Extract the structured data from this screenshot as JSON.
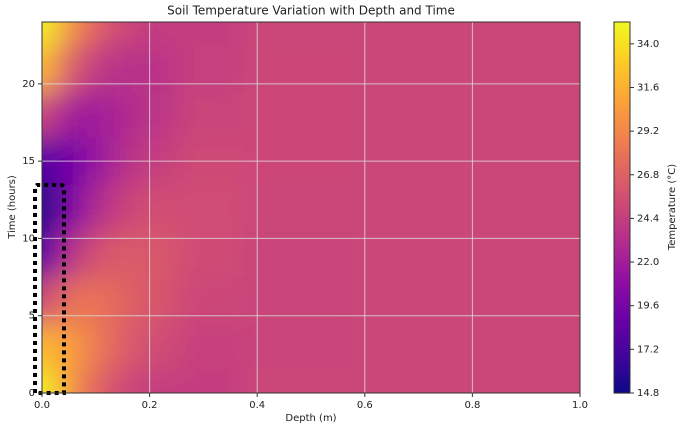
{
  "chart_data": {
    "type": "contour",
    "title": "Soil Temperature Variation with Depth and Time",
    "x_label": "Depth (m)",
    "y_label": "Time (hours)",
    "colorbar_label": "Temperature (°C)",
    "x": [
      0,
      0.05,
      0.1,
      0.15,
      0.2,
      0.3,
      0.45,
      0.7,
      1.0
    ],
    "y": [
      0,
      3,
      6,
      9,
      12,
      15,
      18,
      21,
      24
    ],
    "values": [
      [
        34.9,
        30.2,
        26.9,
        25.1,
        24.3,
        24.4,
        24.9,
        24.9,
        24.9
      ],
      [
        32.0,
        30.7,
        28.5,
        26.6,
        25.4,
        24.6,
        24.8,
        24.9,
        24.9
      ],
      [
        24.9,
        27.8,
        28.0,
        27.1,
        26.1,
        25.0,
        24.8,
        24.9,
        24.9
      ],
      [
        17.8,
        23.2,
        25.7,
        26.4,
        26.2,
        25.3,
        24.8,
        24.9,
        24.9
      ],
      [
        14.9,
        19.6,
        22.9,
        24.7,
        25.5,
        25.4,
        24.9,
        24.9,
        24.9
      ],
      [
        17.8,
        19.1,
        21.3,
        23.2,
        24.4,
        25.2,
        25.0,
        24.9,
        24.9
      ],
      [
        24.9,
        22.0,
        21.8,
        22.7,
        23.7,
        24.8,
        25.0,
        24.9,
        24.9
      ],
      [
        32.0,
        26.6,
        24.1,
        23.4,
        23.6,
        24.5,
        25.0,
        24.9,
        24.9
      ],
      [
        34.9,
        30.2,
        26.9,
        25.1,
        24.3,
        24.4,
        24.9,
        24.9,
        24.9
      ]
    ],
    "xlim": [
      0,
      1.0
    ],
    "ylim": [
      0,
      24
    ],
    "clim": [
      14.8,
      35.2
    ],
    "xticks": [
      {
        "value": 0,
        "label": "0.0"
      },
      0.2,
      0.4,
      0.6,
      0.8,
      {
        "value": 1,
        "label": "1.0"
      }
    ],
    "yticks": [
      0,
      5,
      10,
      15,
      20
    ],
    "cticks": [
      14.8,
      17.2,
      19.6,
      {
        "value": 22,
        "label": "22.0"
      },
      24.4,
      26.8,
      29.2,
      31.6,
      {
        "value": 34,
        "label": "34.0"
      }
    ],
    "colormap": [
      "#0d0887",
      "#41049d",
      "#6a00a8",
      "#8f0da4",
      "#b12a90",
      "#cc4778",
      "#e16462",
      "#f2844b",
      "#fca636",
      "#fcce25",
      "#f0f921"
    ],
    "grid": true
  }
}
